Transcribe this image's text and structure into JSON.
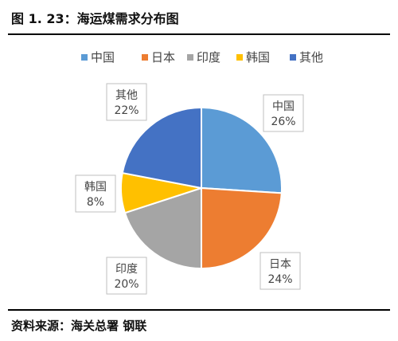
{
  "title": "图 1. 23：海运煤需求分布图",
  "source": "资料来源：海关总署  钢联",
  "chart_data": {
    "type": "pie",
    "legend_position": "top",
    "categories": [
      "中国",
      "日本",
      "印度",
      "韩国",
      "其他"
    ],
    "values": [
      26,
      24,
      20,
      8,
      22
    ],
    "value_labels": [
      "26%",
      "24%",
      "20%",
      "8%",
      "22%"
    ],
    "colors": [
      "#5B9BD5",
      "#ED7D31",
      "#A5A5A5",
      "#FFC000",
      "#4472C4"
    ]
  }
}
